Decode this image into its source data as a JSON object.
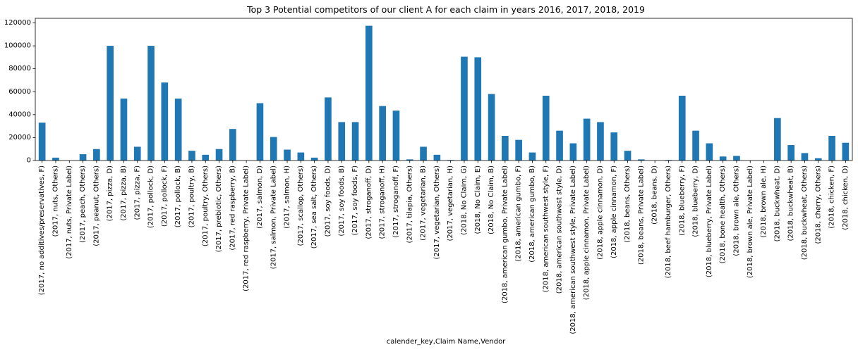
{
  "chart_data": {
    "type": "bar",
    "title": "Top 3 Potential competitors of our client A for each claim in years 2016, 2017, 2018, 2019",
    "xlabel": "calender_key,Claim Name,Vendor",
    "ylabel": "",
    "ylim": [
      0,
      124000
    ],
    "yticks": [
      0,
      20000,
      40000,
      60000,
      80000,
      100000,
      120000
    ],
    "grid": false,
    "legend": "none",
    "bar_color": "#1f77b4",
    "categories": [
      "(2017, no additives/preservatives, F)",
      "(2017, nuts, Others)",
      "(2017, nuts, Private Label)",
      "(2017, peach, Others)",
      "(2017, peanut, Others)",
      "(2017, pizza, D)",
      "(2017, pizza, B)",
      "(2017, pizza, F)",
      "(2017, pollock, D)",
      "(2017, pollock, F)",
      "(2017, pollock, B)",
      "(2017, poultry, B)",
      "(2017, poultry, Others)",
      "(2017, prebiotic, Others)",
      "(2017, red raspberry, B)",
      "(2017, red raspberry, Private Label)",
      "(2017, salmon, D)",
      "(2017, salmon, Private Label)",
      "(2017, salmon, H)",
      "(2017, scallop, Others)",
      "(2017, sea salt, Others)",
      "(2017, soy foods, D)",
      "(2017, soy foods, B)",
      "(2017, soy foods, F)",
      "(2017, stroganoff, D)",
      "(2017, stroganoff, H)",
      "(2017, stroganoff, F)",
      "(2017, tilapia, Others)",
      "(2017, vegetarian, B)",
      "(2017, vegetarian, Others)",
      "(2017, vegetarian, H)",
      "(2018, No Claim, G)",
      "(2018, No Claim, E)",
      "(2018, No Claim, B)",
      "(2018, american gumbo, Private Label)",
      "(2018, american gumbo, F)",
      "(2018, american gumbo, B)",
      "(2018, american southwest style, F)",
      "(2018, american southwest style, D)",
      "(2018, american southwest style, Private Label)",
      "(2018, apple cinnamon, Private Label)",
      "(2018, apple cinnamon, D)",
      "(2018, apple cinnamon, F)",
      "(2018, beans, Others)",
      "(2018, beans, Private Label)",
      "(2018, beans, D)",
      "(2018, beef hamburger, Others)",
      "(2018, blueberry, F)",
      "(2018, blueberry, D)",
      "(2018, blueberry, Private Label)",
      "(2018, bone health, Others)",
      "(2018, brown ale, Others)",
      "(2018, brown ale, Private Label)",
      "(2018, brown ale, H)",
      "(2018, buckwheat, D)",
      "(2018, buckwheat, B)",
      "(2018, buckwheat, Others)",
      "(2018, cherry, Others)",
      "(2018, chicken, F)",
      "(2018, chicken, D)"
    ],
    "values": [
      33000,
      2500,
      0,
      5500,
      10000,
      100000,
      54000,
      12000,
      100000,
      68000,
      54000,
      8500,
      5000,
      10000,
      27500,
      0,
      50000,
      20500,
      9500,
      7000,
      2500,
      55000,
      33500,
      33500,
      117500,
      47500,
      43500,
      1000,
      12000,
      5000,
      500,
      90500,
      90000,
      58000,
      21500,
      18000,
      7000,
      56500,
      26000,
      15000,
      36500,
      33500,
      24500,
      8500,
      1000,
      0,
      500,
      56500,
      26000,
      15000,
      3500,
      4000,
      0,
      0,
      37000,
      13500,
      6500,
      2000,
      21500,
      15500
    ]
  }
}
